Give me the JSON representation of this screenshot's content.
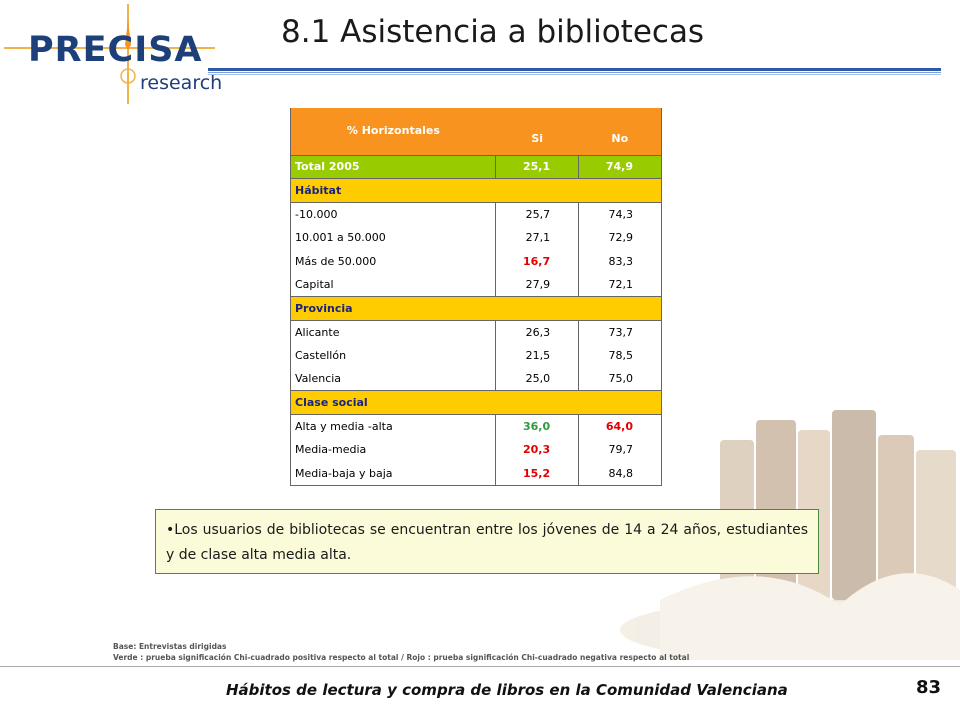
{
  "logo": {
    "brand": "PRECISA",
    "sub": "research"
  },
  "title": "8.1 Asistencia a bibliotecas",
  "table": {
    "header": {
      "label": "% Horizontales",
      "col1": "Si",
      "col2": "No"
    },
    "total": {
      "label": "Total 2005",
      "v1": "25,1",
      "v2": "74,9"
    },
    "sections": [
      {
        "name": "Hábitat",
        "rows": [
          {
            "label": "-10.000",
            "v1": "25,7",
            "v2": "74,3",
            "s1": "",
            "s2": ""
          },
          {
            "label": "10.001 a 50.000",
            "v1": "27,1",
            "v2": "72,9",
            "s1": "",
            "s2": ""
          },
          {
            "label": "Más de 50.000",
            "v1": "16,7",
            "v2": "83,3",
            "s1": "red",
            "s2": ""
          },
          {
            "label": "Capital",
            "v1": "27,9",
            "v2": "72,1",
            "s1": "",
            "s2": ""
          }
        ]
      },
      {
        "name": "Provincia",
        "rows": [
          {
            "label": "Alicante",
            "v1": "26,3",
            "v2": "73,7",
            "s1": "",
            "s2": ""
          },
          {
            "label": "Castellón",
            "v1": "21,5",
            "v2": "78,5",
            "s1": "",
            "s2": ""
          },
          {
            "label": "Valencia",
            "v1": "25,0",
            "v2": "75,0",
            "s1": "",
            "s2": ""
          }
        ]
      },
      {
        "name": "Clase social",
        "rows": [
          {
            "label": "Alta y media -alta",
            "v1": "36,0",
            "v2": "64,0",
            "s1": "green",
            "s2": "red"
          },
          {
            "label": "Media-media",
            "v1": "20,3",
            "v2": "79,7",
            "s1": "red",
            "s2": ""
          },
          {
            "label": "Media-baja y baja",
            "v1": "15,2",
            "v2": "84,8",
            "s1": "red",
            "s2": ""
          }
        ]
      }
    ]
  },
  "note": "•Los usuarios de bibliotecas se encuentran entre los jóvenes de 14 a 24 años, estudiantes y de clase alta media alta.",
  "footnotes": {
    "base": "Base: Entrevistas dirigidas",
    "legend": "Verde : prueba significación Chi-cuadrado positiva  respecto al total / Rojo : prueba significación Chi-cuadrado negativa respecto al total"
  },
  "footer": {
    "subtitle": "Hábitos de lectura y compra de libros en la Comunidad Valenciana",
    "page": "83"
  },
  "colors": {
    "header_orange": "#f7931e",
    "total_green": "#99cc00",
    "section_yellow": "#ffcc00",
    "significant_positive": "#2e9a3e",
    "significant_negative": "#e00000",
    "brand_blue": "#1d3f7a"
  }
}
